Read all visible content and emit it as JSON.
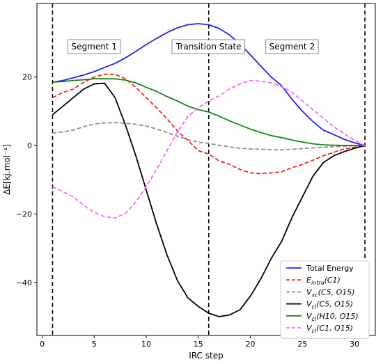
{
  "chart_data": {
    "type": "line",
    "xlabel": "IRC step",
    "ylabel": "ΔE[kj.mol⁻¹]",
    "xlim": [
      -0.5,
      32.0
    ],
    "ylim": [
      -55.5,
      41.5
    ],
    "xticks": [
      0,
      5,
      10,
      15,
      20,
      25,
      30
    ],
    "yticks": [
      -40,
      -20,
      0,
      20
    ],
    "grid": false,
    "legend_position": "lower-right",
    "vlines": [
      1,
      16,
      31
    ],
    "annotations": [
      {
        "text": "Segment 1",
        "x": 5,
        "y": 29
      },
      {
        "text": "Transition State",
        "x": 16,
        "y": 29
      },
      {
        "text": "Segment 2",
        "x": 24,
        "y": 29
      }
    ],
    "series": [
      {
        "name": "Total Energy",
        "color": "#1f1fff",
        "dash": "solid",
        "x": [
          1,
          2,
          3,
          4,
          5,
          6,
          7,
          8,
          9,
          10,
          11,
          12,
          13,
          14,
          15,
          16,
          17,
          18,
          19,
          20,
          21,
          22,
          23,
          24,
          25,
          26,
          27,
          28,
          29,
          30,
          31
        ],
        "y": [
          18.5,
          19,
          19.8,
          20.6,
          21.6,
          22.8,
          24,
          25.6,
          27.5,
          29.5,
          31.3,
          33,
          34.4,
          35.3,
          35.6,
          35.3,
          34.2,
          32.3,
          29.7,
          26.5,
          23.2,
          20,
          17.5,
          13.5,
          10,
          7,
          4.5,
          3.2,
          1.8,
          0.8,
          0
        ]
      },
      {
        "name": "E_intra(C1)",
        "color": "#ff1f1f",
        "dash": "dashed",
        "x": [
          1,
          2,
          3,
          4,
          5,
          6,
          7,
          8,
          9,
          10,
          11,
          12,
          13,
          14,
          15,
          16,
          17,
          18,
          19,
          20,
          21,
          22,
          23,
          24,
          25,
          26,
          27,
          28,
          29,
          30,
          31
        ],
        "y": [
          14,
          15.5,
          16.5,
          18.5,
          20,
          20.8,
          20.8,
          19.5,
          17,
          14,
          11,
          7.8,
          4.2,
          1.5,
          -1.5,
          -2.5,
          -4.5,
          -5.5,
          -7,
          -8,
          -8.2,
          -8,
          -7.7,
          -6.5,
          -5.5,
          -4.3,
          -3,
          -2,
          -1,
          -0.5,
          0
        ]
      },
      {
        "name": "V_xc(C5,O15)",
        "color": "#8c8c8c",
        "dash": "dashed",
        "x": [
          1,
          2,
          3,
          4,
          5,
          6,
          7,
          8,
          9,
          10,
          11,
          12,
          13,
          14,
          15,
          16,
          17,
          18,
          19,
          20,
          21,
          22,
          23,
          24,
          25,
          26,
          27,
          28,
          29,
          30,
          31
        ],
        "y": [
          3.6,
          4,
          4.5,
          5.5,
          6.3,
          6.6,
          6.7,
          6.5,
          6.2,
          5.7,
          4.8,
          3.8,
          2.7,
          1.7,
          1,
          0.6,
          0.1,
          -0.4,
          -0.8,
          -1,
          -1.1,
          -1.2,
          -1.3,
          -1.1,
          -0.9,
          -0.7,
          -0.5,
          -0.3,
          -0.2,
          -0.1,
          0
        ]
      },
      {
        "name": "V_cl(C5,O15)",
        "color": "#000000",
        "dash": "solid",
        "x": [
          1,
          2,
          3,
          4,
          5,
          6,
          7,
          8,
          9,
          10,
          11,
          12,
          13,
          14,
          15,
          16,
          17,
          18,
          19,
          20,
          21,
          22,
          23,
          24,
          25,
          26,
          27,
          28,
          29,
          30,
          31
        ],
        "y": [
          9,
          11.5,
          14,
          16.5,
          18,
          18.2,
          14,
          6,
          -3,
          -13,
          -23,
          -32,
          -39.5,
          -44.5,
          -47,
          -49,
          -50,
          -49.5,
          -48,
          -44,
          -39,
          -33,
          -28,
          -21,
          -15,
          -9,
          -5,
          -3,
          -1.8,
          -0.8,
          0
        ]
      },
      {
        "name": "V_cl(H10,O15)",
        "color": "#118811",
        "dash": "solid",
        "x": [
          1,
          2,
          3,
          4,
          5,
          6,
          7,
          8,
          9,
          10,
          11,
          12,
          13,
          14,
          15,
          16,
          17,
          18,
          19,
          20,
          21,
          22,
          23,
          24,
          25,
          26,
          27,
          28,
          29,
          30,
          31
        ],
        "y": [
          18.5,
          18.7,
          19,
          19.2,
          19.5,
          19.5,
          19.5,
          19.1,
          18.3,
          17,
          15.8,
          14.3,
          13,
          11.5,
          10.5,
          9.8,
          8.6,
          7.2,
          6,
          4.8,
          3.8,
          2.9,
          2.3,
          1.6,
          1,
          0.5,
          0.2,
          0.1,
          0,
          0,
          0
        ]
      },
      {
        "name": "V_cl(C1,O15)",
        "color": "#ff66ff",
        "dash": "dashed",
        "x": [
          1,
          2,
          3,
          4,
          5,
          6,
          7,
          8,
          9,
          10,
          11,
          12,
          13,
          14,
          15,
          16,
          17,
          18,
          19,
          20,
          21,
          22,
          23,
          24,
          25,
          26,
          27,
          28,
          29,
          30,
          31
        ],
        "y": [
          -12,
          -13.5,
          -15,
          -17.5,
          -19.5,
          -20.8,
          -21.2,
          -19.8,
          -16.5,
          -12,
          -7,
          -1.5,
          4,
          8.5,
          11,
          13,
          14.5,
          16.5,
          18,
          19,
          18.8,
          18.3,
          17.3,
          15.5,
          13,
          10.5,
          8,
          5.5,
          3.5,
          1.5,
          0
        ]
      }
    ],
    "legend": [
      {
        "label": "Total Energy",
        "base": "Total Energy",
        "sub": "",
        "args": "",
        "color": "#1f1fff",
        "dash": "solid"
      },
      {
        "label": "E_intra(C1)",
        "base": "E",
        "sub": "intra",
        "args": "(C1)",
        "color": "#ff1f1f",
        "dash": "dashed"
      },
      {
        "label": "V_xc(C5,O15)",
        "base": "V",
        "sub": "xc",
        "args": "(C5, O15)",
        "color": "#8c8c8c",
        "dash": "dashed"
      },
      {
        "label": "V_cl(C5,O15)",
        "base": "V",
        "sub": "cl",
        "args": "(C5, O15)",
        "color": "#000000",
        "dash": "solid"
      },
      {
        "label": "V_cl(H10,O15)",
        "base": "V",
        "sub": "cl",
        "args": "(H10, O15)",
        "color": "#118811",
        "dash": "solid"
      },
      {
        "label": "V_cl(C1,O15)",
        "base": "V",
        "sub": "cl",
        "args": "(C1, O15)",
        "color": "#ff66ff",
        "dash": "dashed"
      }
    ]
  }
}
